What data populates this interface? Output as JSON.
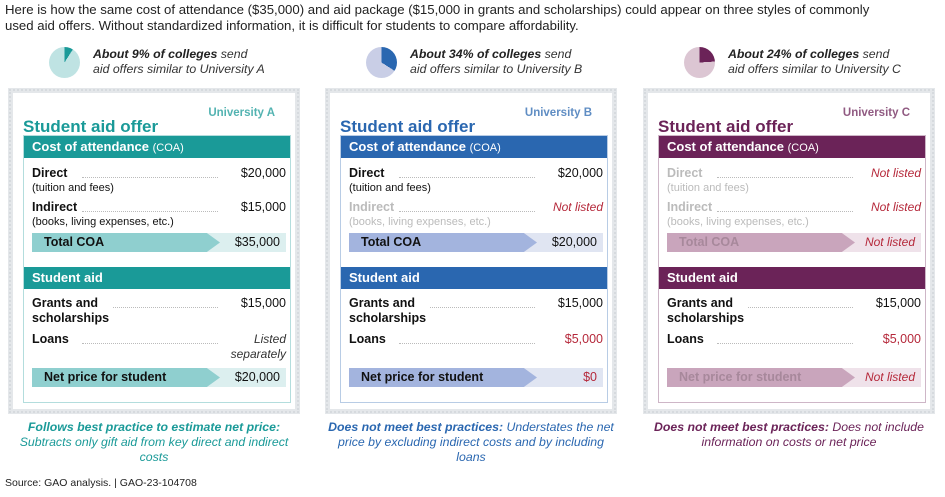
{
  "intro": "Here is how the same cost of attendance ($35,000) and aid package ($15,000 in grants and scholarships) could appear on three styles of commonly used aid offers. Without standardized information, it is difficult for students to compare affordability.",
  "source": "Source: GAO analysis.  |  GAO-23-104708",
  "columns": [
    {
      "university": "University A",
      "percent": 9,
      "pie_bold": "About 9% of colleges",
      "pie_rest": " send",
      "pie_line2": "aid offers similar to University A",
      "colors": {
        "main": "#1a9a98",
        "light": "#bfe3e3",
        "bar": "#8fcfcf",
        "barrest": "#dcefef"
      },
      "title": "Student aid offer",
      "coa_header": "Cost of attendance",
      "coa_abbr": "(COA)",
      "direct": {
        "label": "Direct",
        "sub": "(tuition and fees)",
        "value": "$20,000",
        "style": "normal"
      },
      "indirect": {
        "label": "Indirect",
        "sub": "(books, living expenses, etc.)",
        "value": "$15,000",
        "style": "normal"
      },
      "total": {
        "label": "Total COA",
        "value": "$35,000",
        "style": "normal"
      },
      "aid_header": "Student aid",
      "grants": {
        "label": "Grants and",
        "label2": "scholarships",
        "value": "$15,000",
        "style": "normal"
      },
      "loans": {
        "label": "Loans",
        "value": "Listed",
        "value2": "separately",
        "style": "it"
      },
      "net": {
        "label": "Net price for student",
        "value": "$20,000",
        "style": "normal"
      },
      "cap_bold": "Follows best practice to estimate net price:",
      "cap_rest": " Subtracts only gift aid from key direct and indirect costs"
    },
    {
      "university": "University B",
      "percent": 34,
      "pie_bold": "About 34% of colleges",
      "pie_rest": " send",
      "pie_line2": "aid offers similar to University B",
      "colors": {
        "main": "#2a67b0",
        "light": "#c9cee6",
        "bar": "#a3b4de",
        "barrest": "#e0e5f2"
      },
      "title": "Student aid offer",
      "coa_header": "Cost of attendance",
      "coa_abbr": "(COA)",
      "direct": {
        "label": "Direct",
        "sub": "(tuition and fees)",
        "value": "$20,000",
        "style": "normal"
      },
      "indirect": {
        "label": "Indirect",
        "sub": "(books, living expenses, etc.)",
        "value": "Not listed",
        "style": "nl"
      },
      "total": {
        "label": "Total COA",
        "value": "$20,000",
        "style": "normal"
      },
      "aid_header": "Student aid",
      "grants": {
        "label": "Grants and",
        "label2": "scholarships",
        "value": "$15,000",
        "style": "normal"
      },
      "loans": {
        "label": "Loans",
        "value": "$5,000",
        "style": "red"
      },
      "net": {
        "label": "Net price for student",
        "value": "$0",
        "style": "red"
      },
      "cap_bold": "Does not meet best practices:",
      "cap_rest": " Understates the net price by excluding indirect costs and by including loans"
    },
    {
      "university": "University C",
      "percent": 24,
      "pie_bold": "About 24% of colleges",
      "pie_rest": " send",
      "pie_line2": "aid offers similar to University C",
      "colors": {
        "main": "#6b2358",
        "light": "#dcc6d3",
        "bar": "#c9a5bc",
        "barrest": "#efe2ea"
      },
      "title": "Student aid offer",
      "coa_header": "Cost of attendance",
      "coa_abbr": "(COA)",
      "direct": {
        "label": "Direct",
        "sub": "(tuition and fees)",
        "value": "Not listed",
        "style": "nl"
      },
      "indirect": {
        "label": "Indirect",
        "sub": "(books, living expenses, etc.)",
        "value": "Not listed",
        "style": "nl"
      },
      "total": {
        "label": "Total COA",
        "value": "Not listed",
        "style": "nl"
      },
      "aid_header": "Student aid",
      "grants": {
        "label": "Grants and",
        "label2": "scholarships",
        "value": "$15,000",
        "style": "normal"
      },
      "loans": {
        "label": "Loans",
        "value": "$5,000",
        "style": "red"
      },
      "net": {
        "label": "Net price for student",
        "value": "Not listed",
        "style": "nl"
      },
      "cap_bold": "Does not meet best practices:",
      "cap_rest": " Does not include information on costs or net price"
    }
  ]
}
